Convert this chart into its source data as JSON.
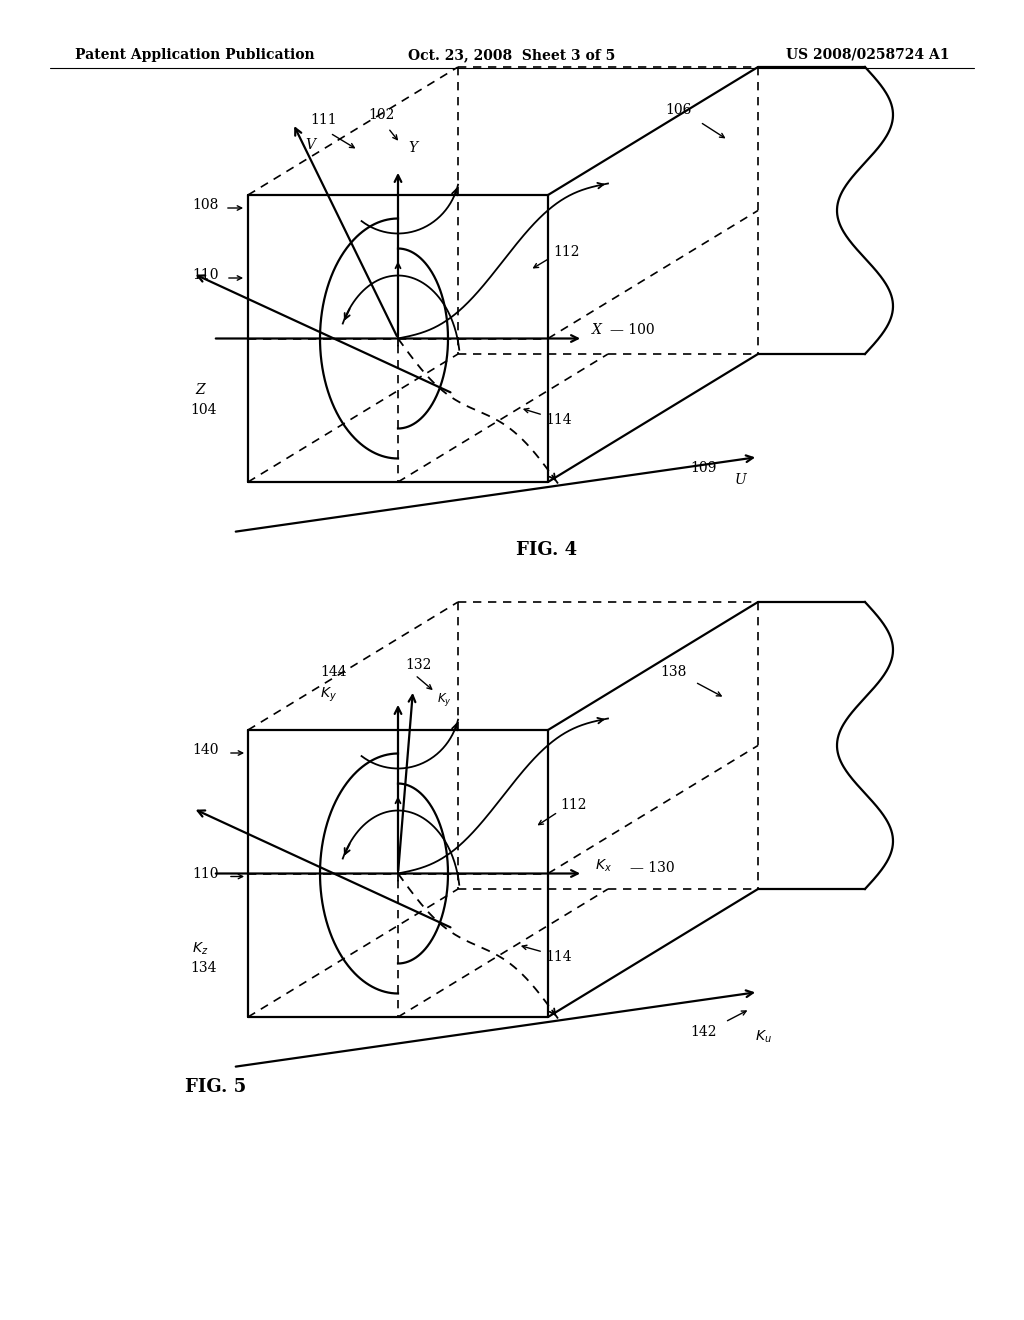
{
  "bg_color": "#ffffff",
  "header_left": "Patent Application Publication",
  "header_center": "Oct. 23, 2008  Sheet 3 of 5",
  "header_right": "US 2008/0258724 A1",
  "fig4_caption": "FIG. 4",
  "fig5_caption": "FIG. 5",
  "lw_main": 1.6,
  "lw_thin": 1.3,
  "lw_dash": 1.2,
  "fs_label": 10,
  "fs_caption": 13,
  "fs_header": 10
}
